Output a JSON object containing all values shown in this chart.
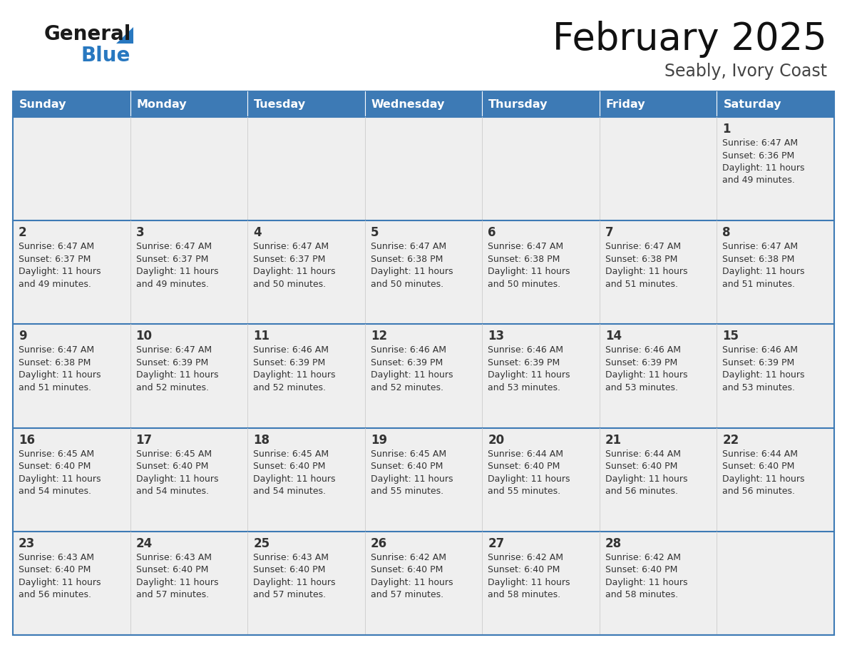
{
  "title": "February 2025",
  "subtitle": "Seably, Ivory Coast",
  "header_bg_color": "#3d7ab5",
  "header_text_color": "#ffffff",
  "cell_bg_color": "#efefef",
  "border_color": "#3d7ab5",
  "cell_border_color": "#cccccc",
  "day_headers": [
    "Sunday",
    "Monday",
    "Tuesday",
    "Wednesday",
    "Thursday",
    "Friday",
    "Saturday"
  ],
  "text_color": "#333333",
  "day_num_color": "#333333",
  "logo_general_color": "#1a1a1a",
  "logo_blue_color": "#2878c0",
  "calendar_data": [
    [
      null,
      null,
      null,
      null,
      null,
      null,
      {
        "day": 1,
        "sunrise": "6:47 AM",
        "sunset": "6:36 PM",
        "daylight_hours": 11,
        "daylight_minutes": 49
      }
    ],
    [
      {
        "day": 2,
        "sunrise": "6:47 AM",
        "sunset": "6:37 PM",
        "daylight_hours": 11,
        "daylight_minutes": 49
      },
      {
        "day": 3,
        "sunrise": "6:47 AM",
        "sunset": "6:37 PM",
        "daylight_hours": 11,
        "daylight_minutes": 49
      },
      {
        "day": 4,
        "sunrise": "6:47 AM",
        "sunset": "6:37 PM",
        "daylight_hours": 11,
        "daylight_minutes": 50
      },
      {
        "day": 5,
        "sunrise": "6:47 AM",
        "sunset": "6:38 PM",
        "daylight_hours": 11,
        "daylight_minutes": 50
      },
      {
        "day": 6,
        "sunrise": "6:47 AM",
        "sunset": "6:38 PM",
        "daylight_hours": 11,
        "daylight_minutes": 50
      },
      {
        "day": 7,
        "sunrise": "6:47 AM",
        "sunset": "6:38 PM",
        "daylight_hours": 11,
        "daylight_minutes": 51
      },
      {
        "day": 8,
        "sunrise": "6:47 AM",
        "sunset": "6:38 PM",
        "daylight_hours": 11,
        "daylight_minutes": 51
      }
    ],
    [
      {
        "day": 9,
        "sunrise": "6:47 AM",
        "sunset": "6:38 PM",
        "daylight_hours": 11,
        "daylight_minutes": 51
      },
      {
        "day": 10,
        "sunrise": "6:47 AM",
        "sunset": "6:39 PM",
        "daylight_hours": 11,
        "daylight_minutes": 52
      },
      {
        "day": 11,
        "sunrise": "6:46 AM",
        "sunset": "6:39 PM",
        "daylight_hours": 11,
        "daylight_minutes": 52
      },
      {
        "day": 12,
        "sunrise": "6:46 AM",
        "sunset": "6:39 PM",
        "daylight_hours": 11,
        "daylight_minutes": 52
      },
      {
        "day": 13,
        "sunrise": "6:46 AM",
        "sunset": "6:39 PM",
        "daylight_hours": 11,
        "daylight_minutes": 53
      },
      {
        "day": 14,
        "sunrise": "6:46 AM",
        "sunset": "6:39 PM",
        "daylight_hours": 11,
        "daylight_minutes": 53
      },
      {
        "day": 15,
        "sunrise": "6:46 AM",
        "sunset": "6:39 PM",
        "daylight_hours": 11,
        "daylight_minutes": 53
      }
    ],
    [
      {
        "day": 16,
        "sunrise": "6:45 AM",
        "sunset": "6:40 PM",
        "daylight_hours": 11,
        "daylight_minutes": 54
      },
      {
        "day": 17,
        "sunrise": "6:45 AM",
        "sunset": "6:40 PM",
        "daylight_hours": 11,
        "daylight_minutes": 54
      },
      {
        "day": 18,
        "sunrise": "6:45 AM",
        "sunset": "6:40 PM",
        "daylight_hours": 11,
        "daylight_minutes": 54
      },
      {
        "day": 19,
        "sunrise": "6:45 AM",
        "sunset": "6:40 PM",
        "daylight_hours": 11,
        "daylight_minutes": 55
      },
      {
        "day": 20,
        "sunrise": "6:44 AM",
        "sunset": "6:40 PM",
        "daylight_hours": 11,
        "daylight_minutes": 55
      },
      {
        "day": 21,
        "sunrise": "6:44 AM",
        "sunset": "6:40 PM",
        "daylight_hours": 11,
        "daylight_minutes": 56
      },
      {
        "day": 22,
        "sunrise": "6:44 AM",
        "sunset": "6:40 PM",
        "daylight_hours": 11,
        "daylight_minutes": 56
      }
    ],
    [
      {
        "day": 23,
        "sunrise": "6:43 AM",
        "sunset": "6:40 PM",
        "daylight_hours": 11,
        "daylight_minutes": 56
      },
      {
        "day": 24,
        "sunrise": "6:43 AM",
        "sunset": "6:40 PM",
        "daylight_hours": 11,
        "daylight_minutes": 57
      },
      {
        "day": 25,
        "sunrise": "6:43 AM",
        "sunset": "6:40 PM",
        "daylight_hours": 11,
        "daylight_minutes": 57
      },
      {
        "day": 26,
        "sunrise": "6:42 AM",
        "sunset": "6:40 PM",
        "daylight_hours": 11,
        "daylight_minutes": 57
      },
      {
        "day": 27,
        "sunrise": "6:42 AM",
        "sunset": "6:40 PM",
        "daylight_hours": 11,
        "daylight_minutes": 58
      },
      {
        "day": 28,
        "sunrise": "6:42 AM",
        "sunset": "6:40 PM",
        "daylight_hours": 11,
        "daylight_minutes": 58
      },
      null
    ]
  ],
  "figsize": [
    11.88,
    9.18
  ],
  "dpi": 100
}
